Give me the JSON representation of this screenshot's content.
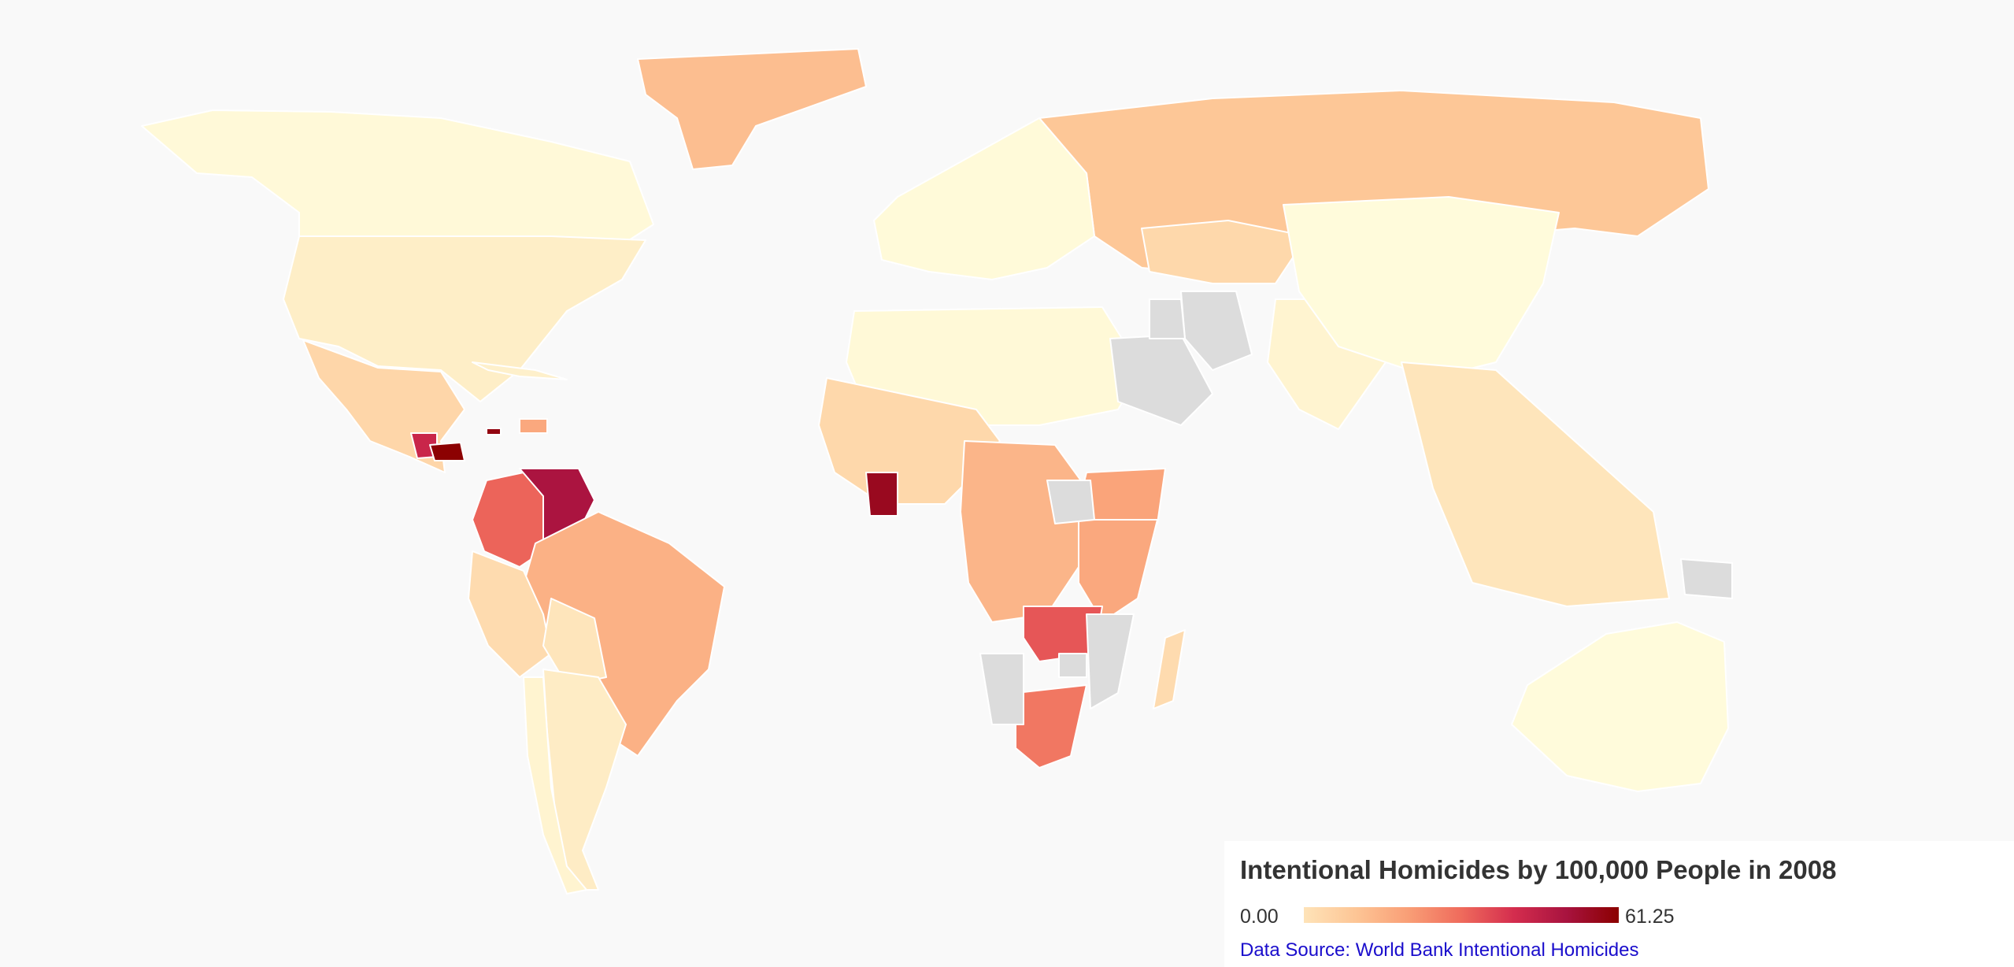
{
  "legend": {
    "title": "Intentional Homicides by 100,000 People in 2008",
    "min_label": "0.00",
    "max_label": "61.25",
    "source_link": "Data Source: World Bank Intentional Homicides"
  },
  "colors": {
    "background": "#f9f9f9",
    "no_data": "#dcdcdc",
    "scale": [
      "#ffffe0",
      "#fee3b8",
      "#fdc595",
      "#f99e76",
      "#ef6b5c",
      "#d42d4e",
      "#a8133f",
      "#8b0000"
    ]
  },
  "chart_data": {
    "type": "choropleth",
    "title": "Intentional Homicides by 100,000 People in 2008",
    "scale_range": [
      0,
      61.25
    ],
    "no_data_countries": [
      "Saudi Arabia",
      "Iran",
      "Iraq",
      "South Sudan",
      "Namibia",
      "Zimbabwe",
      "Mozambique",
      "Papua New Guinea"
    ],
    "regions": [
      {
        "name": "Canada",
        "value": 1.8
      },
      {
        "name": "United States",
        "value": 5.4
      },
      {
        "name": "Mexico",
        "value": 12.5
      },
      {
        "name": "Guatemala",
        "value": 46
      },
      {
        "name": "Honduras",
        "value": 61
      },
      {
        "name": "Jamaica",
        "value": 59
      },
      {
        "name": "Cuba",
        "value": 4.6
      },
      {
        "name": "Dominican Republic",
        "value": 24
      },
      {
        "name": "Colombia",
        "value": 36
      },
      {
        "name": "Venezuela",
        "value": 52
      },
      {
        "name": "Brazil",
        "value": 22
      },
      {
        "name": "Peru",
        "value": 11
      },
      {
        "name": "Bolivia",
        "value": 8
      },
      {
        "name": "Argentina",
        "value": 5.8
      },
      {
        "name": "Chile",
        "value": 3.5
      },
      {
        "name": "Greenland",
        "value": 19
      },
      {
        "name": "Russia",
        "value": 17
      },
      {
        "name": "Kazakhstan",
        "value": 12
      },
      {
        "name": "Europe",
        "value": 1.5
      },
      {
        "name": "North Africa",
        "value": 2
      },
      {
        "name": "West Africa",
        "value": 12
      },
      {
        "name": "Cote d'Ivoire",
        "value": 57
      },
      {
        "name": "Central Africa",
        "value": 21
      },
      {
        "name": "Ethiopia",
        "value": 25
      },
      {
        "name": "East Africa",
        "value": 24
      },
      {
        "name": "Zambia",
        "value": 38
      },
      {
        "name": "South Africa",
        "value": 33
      },
      {
        "name": "Madagascar",
        "value": 11
      },
      {
        "name": "India",
        "value": 3.4
      },
      {
        "name": "China",
        "value": 1.1
      },
      {
        "name": "Southeast Asia",
        "value": 8
      },
      {
        "name": "Australia",
        "value": 1.2
      }
    ]
  }
}
